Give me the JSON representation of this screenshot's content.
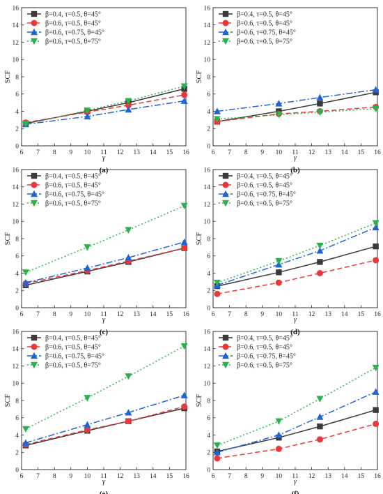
{
  "colors": {
    "series": [
      "#3a3a3a",
      "#e8393a",
      "#1f64d6",
      "#2bb24c"
    ]
  },
  "legend_position": "top-left",
  "chart_data": [
    {
      "type": "line",
      "panel_label": "(a)",
      "xlabel": "γ",
      "ylabel": "SCF",
      "xlim": [
        6,
        16
      ],
      "ylim": [
        0,
        16
      ],
      "x_ticks": [
        "6",
        "7",
        "8",
        "9",
        "10",
        "11",
        "12",
        "13",
        "14",
        "15",
        "16"
      ],
      "y_ticks": [
        "0",
        "2",
        "4",
        "6",
        "8",
        "10",
        "12",
        "14",
        "16"
      ],
      "x": [
        6.25,
        10,
        12.5,
        15.9
      ],
      "series": [
        {
          "name": "β=0.4, τ=0.5, θ=45°",
          "values": [
            2.6,
            4.0,
            5.0,
            6.6
          ]
        },
        {
          "name": "β=0.6, τ=0.5, θ=45°",
          "values": [
            2.7,
            3.9,
            4.7,
            5.9
          ]
        },
        {
          "name": "β=0.6, τ=0.75, θ=45°",
          "values": [
            2.5,
            3.4,
            4.2,
            5.2
          ]
        },
        {
          "name": "β=0.6, τ=0.5, θ=75°",
          "values": [
            2.5,
            4.1,
            5.2,
            6.9
          ]
        }
      ]
    },
    {
      "type": "line",
      "panel_label": "(b)",
      "xlabel": "γ",
      "ylabel": "SCF",
      "xlim": [
        6,
        16
      ],
      "ylim": [
        0,
        16
      ],
      "x_ticks": [
        "6",
        "7",
        "8",
        "9",
        "10",
        "11",
        "12",
        "13",
        "14",
        "15",
        "16"
      ],
      "y_ticks": [
        "0",
        "2",
        "4",
        "6",
        "8",
        "10",
        "12",
        "14",
        "16"
      ],
      "x": [
        6.25,
        10,
        12.5,
        15.9
      ],
      "series": [
        {
          "name": "β=0.4, τ=0.5, θ=45°",
          "values": [
            2.8,
            4.0,
            4.9,
            6.2
          ]
        },
        {
          "name": "β=0.6, τ=0.5, θ=45°",
          "values": [
            2.8,
            3.7,
            4.0,
            4.5
          ]
        },
        {
          "name": "β=0.6, τ=0.75, θ=45°",
          "values": [
            4.0,
            4.9,
            5.6,
            6.5
          ]
        },
        {
          "name": "β=0.6, τ=0.5, θ=75°",
          "values": [
            3.1,
            3.6,
            3.9,
            4.3
          ]
        }
      ]
    },
    {
      "type": "line",
      "panel_label": "(c)",
      "xlabel": "γ",
      "ylabel": "SCF",
      "xlim": [
        6,
        16
      ],
      "ylim": [
        0,
        16
      ],
      "x_ticks": [
        "6",
        "7",
        "8",
        "9",
        "10",
        "11",
        "12",
        "13",
        "14",
        "15",
        "16"
      ],
      "y_ticks": [
        "0",
        "2",
        "4",
        "6",
        "8",
        "10",
        "12",
        "14",
        "16"
      ],
      "x": [
        6.25,
        10,
        12.5,
        15.9
      ],
      "series": [
        {
          "name": "β=0.4, τ=0.5, θ=45°",
          "values": [
            2.6,
            4.2,
            5.3,
            6.9
          ]
        },
        {
          "name": "β=0.6, τ=0.5, θ=45°",
          "values": [
            2.8,
            4.3,
            5.4,
            6.9
          ]
        },
        {
          "name": "β=0.6, τ=0.75, θ=45°",
          "values": [
            2.9,
            4.6,
            5.8,
            7.6
          ]
        },
        {
          "name": "β=0.6, τ=0.5, θ=75°",
          "values": [
            4.1,
            7.0,
            9.0,
            11.8
          ]
        }
      ]
    },
    {
      "type": "line",
      "panel_label": "(d)",
      "xlabel": "γ",
      "ylabel": "SCF",
      "xlim": [
        6,
        16
      ],
      "ylim": [
        0,
        16
      ],
      "x_ticks": [
        "6",
        "7",
        "8",
        "9",
        "10",
        "11",
        "12",
        "13",
        "14",
        "15",
        "16"
      ],
      "y_ticks": [
        "0",
        "2",
        "4",
        "6",
        "8",
        "10",
        "12",
        "14",
        "16"
      ],
      "x": [
        6.25,
        10,
        12.5,
        15.9
      ],
      "series": [
        {
          "name": "β=0.4, τ=0.5, θ=45°",
          "values": [
            2.5,
            4.1,
            5.3,
            7.1
          ]
        },
        {
          "name": "β=0.6, τ=0.5, θ=45°",
          "values": [
            1.6,
            2.9,
            4.0,
            5.5
          ]
        },
        {
          "name": "β=0.6, τ=0.75, θ=45°",
          "values": [
            2.6,
            5.0,
            6.6,
            9.3
          ]
        },
        {
          "name": "β=0.6, τ=0.5, θ=75°",
          "values": [
            2.9,
            5.4,
            7.2,
            9.8
          ]
        }
      ]
    },
    {
      "type": "line",
      "panel_label": "(e)",
      "xlabel": "γ",
      "ylabel": "SCF",
      "xlim": [
        6,
        16
      ],
      "ylim": [
        0,
        16
      ],
      "x_ticks": [
        "6",
        "7",
        "8",
        "9",
        "10",
        "11",
        "12",
        "13",
        "14",
        "15",
        "16"
      ],
      "y_ticks": [
        "0",
        "2",
        "4",
        "6",
        "8",
        "10",
        "12",
        "14",
        "16"
      ],
      "x": [
        6.25,
        10,
        12.5,
        15.9
      ],
      "series": [
        {
          "name": "β=0.4, τ=0.5, θ=45°",
          "values": [
            2.8,
            4.5,
            5.6,
            7.1
          ]
        },
        {
          "name": "β=0.6, τ=0.5, θ=45°",
          "values": [
            2.9,
            4.6,
            5.6,
            7.3
          ]
        },
        {
          "name": "β=0.6, τ=0.75, θ=45°",
          "values": [
            3.1,
            5.2,
            6.6,
            8.6
          ]
        },
        {
          "name": "β=0.6, τ=0.5, θ=75°",
          "values": [
            4.7,
            8.3,
            10.8,
            14.3
          ]
        }
      ]
    },
    {
      "type": "line",
      "panel_label": "(f)",
      "xlabel": "γ",
      "ylabel": "SCF",
      "xlim": [
        6,
        16
      ],
      "ylim": [
        0,
        16
      ],
      "x_ticks": [
        "6",
        "7",
        "8",
        "9",
        "10",
        "11",
        "12",
        "13",
        "14",
        "15",
        "16"
      ],
      "y_ticks": [
        "0",
        "2",
        "4",
        "6",
        "8",
        "10",
        "12",
        "14",
        "16"
      ],
      "x": [
        6.25,
        10,
        12.5,
        15.9
      ],
      "series": [
        {
          "name": "β=0.4, τ=0.5, θ=45°",
          "values": [
            2.1,
            3.7,
            5.0,
            6.9
          ]
        },
        {
          "name": "β=0.6, τ=0.5, θ=45°",
          "values": [
            1.3,
            2.4,
            3.5,
            5.3
          ]
        },
        {
          "name": "β=0.6, τ=0.75, θ=45°",
          "values": [
            2.0,
            4.0,
            6.1,
            9.0
          ]
        },
        {
          "name": "β=0.6, τ=0.5, θ=75°",
          "values": [
            2.8,
            5.6,
            8.2,
            11.8
          ]
        }
      ]
    }
  ]
}
